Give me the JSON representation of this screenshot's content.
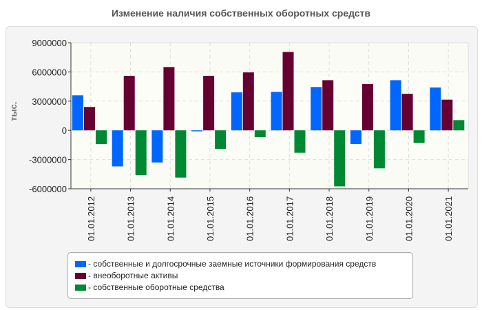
{
  "chart_data": {
    "type": "bar",
    "title": "Изменение наличия собственных оборотных средств",
    "ylabel": "тыс.",
    "xlabel": "",
    "ylim": [
      -6000000,
      9000000
    ],
    "yticks": [
      "9000000",
      "6000000",
      "3000000",
      "0",
      "-3000000",
      "-6000000"
    ],
    "ytick_values": [
      9000000,
      6000000,
      3000000,
      0,
      -3000000,
      -6000000
    ],
    "grid": true,
    "legend_placement": "bottom",
    "categories": [
      "01.01.2012",
      "01.01.2013",
      "01.01.2014",
      "01.01.2015",
      "01.01.2016",
      "01.01.2017",
      "01.01.2018",
      "01.01.2019",
      "01.01.2020",
      "01.01.2021"
    ],
    "series": [
      {
        "name": "- собственные и долгосрочные заемные источники формирования средств",
        "color": "#0066ff",
        "values": [
          3600000,
          -3700000,
          -3300000,
          -100000,
          3900000,
          3950000,
          4450000,
          -1400000,
          5150000,
          4400000
        ]
      },
      {
        "name": "- внеоборотные активы",
        "color": "#660033",
        "values": [
          2400000,
          5600000,
          6500000,
          5600000,
          5950000,
          8050000,
          5150000,
          4750000,
          3750000,
          3150000
        ]
      },
      {
        "name": "- собственные оборотные средства",
        "color": "#008833",
        "values": [
          -1400000,
          -4600000,
          -4850000,
          -1900000,
          -700000,
          -2300000,
          -5750000,
          -3900000,
          -1300000,
          1050000
        ]
      }
    ]
  }
}
